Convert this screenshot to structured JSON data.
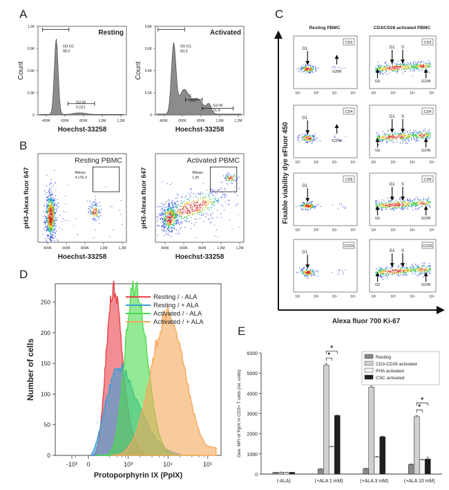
{
  "panels": {
    "A": {
      "letter": "A",
      "charts": [
        {
          "state": "Resting",
          "ylabel": "Count",
          "xlabel": "Hoechst-33258",
          "yticks": [
            "0",
            "0,3K",
            "0,6K",
            "0,9K",
            "1,2K"
          ],
          "xticks": [
            "400K",
            "600K",
            "800K",
            "1,0M",
            "1,2M"
          ],
          "gates": [
            {
              "name": "G0-G1",
              "value": "98,0"
            },
            {
              "name": "G2-M",
              "value": "0,021"
            }
          ]
        },
        {
          "state": "Activated",
          "ylabel": "Count",
          "xlabel": "Hoechst-33258",
          "yticks": [
            "0",
            "0,2K",
            "0,4K",
            "0,6K",
            "0,8K"
          ],
          "xticks": [
            "400K",
            "600K",
            "800K",
            "1,0M",
            "1,2M"
          ],
          "gates": [
            {
              "name": "G0-G1",
              "value": "60,3"
            },
            {
              "name": "S",
              "value": "19,0"
            },
            {
              "name": "G2-M",
              "value": "11,4"
            }
          ]
        }
      ]
    },
    "B": {
      "letter": "B",
      "charts": [
        {
          "title": "Resting PBMC",
          "ylabel": "pH3-Alexa fluor 647",
          "xlabel": "Hoechst-33258",
          "gate_name": "Mitosis",
          "gate_value": "4.17E-3",
          "xticks": [
            "400K",
            "600K",
            "800K",
            "1,0M",
            "1,2M"
          ]
        },
        {
          "title": "Activated PBMC",
          "ylabel": "pH3-Alexa fluor 647",
          "xlabel": "Hoechst-33258",
          "gate_name": "Mitosis",
          "gate_value": "1.35",
          "xticks": [
            "400K",
            "600K",
            "800K",
            "1,0M",
            "1,2M"
          ]
        }
      ]
    },
    "C": {
      "letter": "C",
      "col_titles": [
        "Resting PBMC",
        "CD3/CD28 activated PBMC"
      ],
      "ylabel": "Fixable viability dye eFluor 450",
      "xlabel": "Alexa fluor 700  Ki-67",
      "markers": [
        "CD3",
        "CD4",
        "CD8",
        "CD25"
      ],
      "xticks": [
        "10²",
        "10³",
        "10⁴",
        "10⁵"
      ],
      "phases": {
        "g0": "G0",
        "g1": "G1",
        "s": "S",
        "g2m": "G2/M"
      }
    },
    "D": {
      "letter": "D",
      "chart_data": {
        "type": "area",
        "ylabel": "Number of cells",
        "xlabel": "Protoporphyrin IX (PpIX)",
        "ylim": [
          0,
          280
        ],
        "yticks": [
          0,
          50,
          100,
          150,
          200,
          250
        ],
        "xtick_labels": [
          "-10³",
          "0",
          "10³",
          "10⁴",
          "10⁵"
        ],
        "xtick_positions": [
          -1000,
          0,
          1000,
          10000,
          100000
        ],
        "legend_position": "top-right",
        "series": [
          {
            "name": "Resting  / - ALA",
            "color": "#e8434b",
            "mode": 300,
            "spread": 0.32,
            "peak": 272
          },
          {
            "name": "Resting  / + ALA",
            "color": "#3a9ed8",
            "mode": 500,
            "spread": 0.55,
            "peak": 143
          },
          {
            "name": "Activated  / - ALA",
            "color": "#4ddb4d",
            "mode": 1500,
            "spread": 0.3,
            "peak": 275
          },
          {
            "name": "Activated  / + ALA",
            "color": "#f5a85a",
            "mode": 10000,
            "spread": 0.42,
            "peak": 230
          }
        ]
      }
    },
    "E": {
      "letter": "E",
      "chart_data": {
        "type": "bar",
        "ylabel": "Geo. MFI of PpIX in CD3+ T cells (rel. units)",
        "ylim": [
          0,
          6000
        ],
        "yticks": [
          0,
          1000,
          2000,
          3000,
          4000,
          5000,
          6000
        ],
        "categories": [
          "(-ALA)",
          "(+ALA 1 mM)",
          "(+ALA 3 mM)",
          "(+ALA 10 mM)"
        ],
        "legend_position": "top-right",
        "series": [
          {
            "name": "Resting",
            "color": "#8a8a8a",
            "values": [
              80,
              250,
              270,
              480
            ],
            "errors": [
              10,
              15,
              20,
              25
            ]
          },
          {
            "name": "CD3-CD28 activated",
            "color": "#d0d0d0",
            "values": [
              90,
              5400,
              4300,
              2850
            ],
            "errors": [
              10,
              80,
              70,
              60
            ]
          },
          {
            "name": "PHA activated",
            "color": "#f4f4f4",
            "values": [
              85,
              1350,
              850,
              700
            ],
            "errors": [
              10,
              30,
              30,
              40
            ]
          },
          {
            "name": "CSC activated",
            "color": "#1e1e1e",
            "values": [
              85,
              2900,
              1850,
              750
            ],
            "errors": [
              10,
              30,
              30,
              90
            ]
          }
        ],
        "significance": [
          {
            "category": 1,
            "from": 1,
            "to": 2,
            "label": "*"
          },
          {
            "category": 1,
            "from": 1,
            "to": 3,
            "label": "*"
          },
          {
            "category": 2,
            "from": 1,
            "to": 2,
            "label": "*"
          },
          {
            "category": 2,
            "from": 1,
            "to": 3,
            "label": "*"
          },
          {
            "category": 3,
            "from": 1,
            "to": 2,
            "label": "*"
          },
          {
            "category": 3,
            "from": 1,
            "to": 3,
            "label": "*"
          }
        ]
      }
    }
  }
}
